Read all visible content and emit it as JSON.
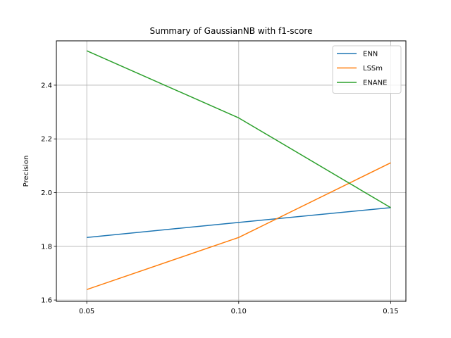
{
  "chart_data": {
    "type": "line",
    "title": "Summary of GaussianNB with f1-score",
    "xlabel": "",
    "ylabel": "Precision",
    "x": [
      0.05,
      0.1,
      0.15
    ],
    "x_tick_labels": [
      "0.05",
      "0.10",
      "0.15"
    ],
    "xlim": [
      0.04,
      0.155
    ],
    "ylim": [
      1.595,
      2.565
    ],
    "y_ticks": [
      1.6,
      1.8,
      2.0,
      2.2,
      2.4
    ],
    "y_tick_labels": [
      "1.6",
      "1.8",
      "2.0",
      "2.2",
      "2.4"
    ],
    "grid": true,
    "legend_position": "top-right",
    "series": [
      {
        "name": "ENN",
        "color": "#1f77b4",
        "values": [
          1.833,
          1.889,
          1.944
        ]
      },
      {
        "name": "LSSm",
        "color": "#ff7f0e",
        "values": [
          1.639,
          1.833,
          2.111
        ]
      },
      {
        "name": "ENANE",
        "color": "#2ca02c",
        "values": [
          2.528,
          2.278,
          1.944
        ]
      }
    ]
  }
}
